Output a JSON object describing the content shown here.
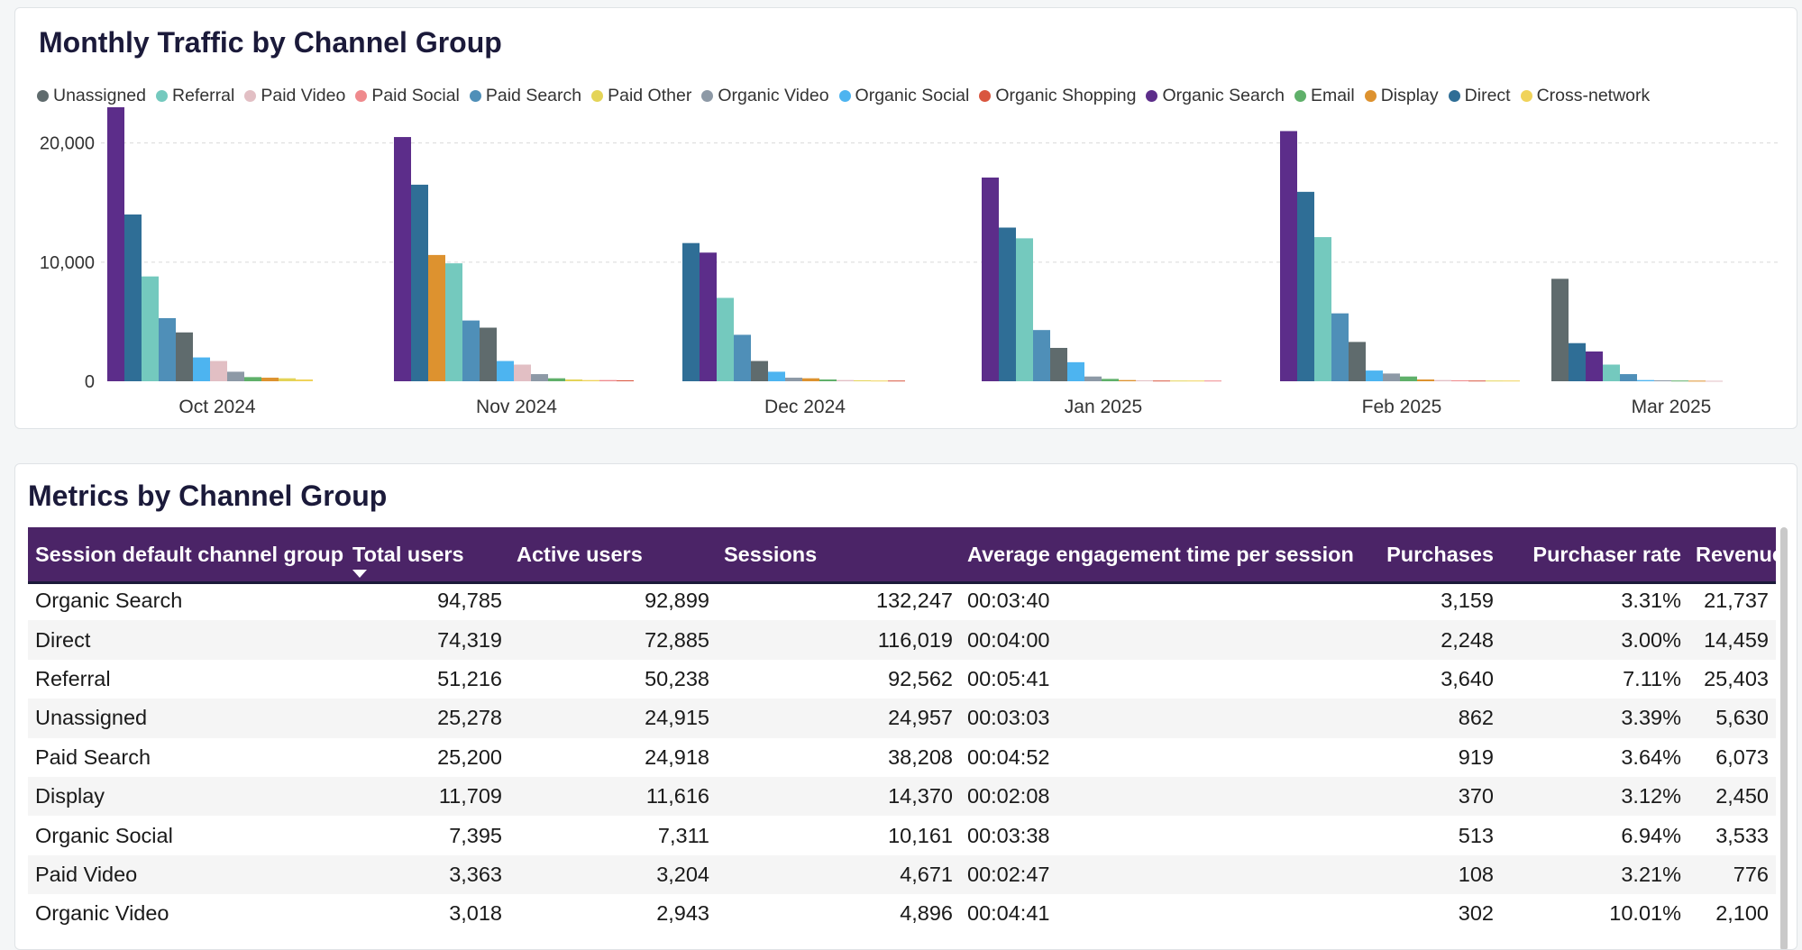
{
  "chart": {
    "title": "Monthly Traffic by Channel Group",
    "legend": [
      {
        "name": "Unassigned",
        "color": "#5f6b6d"
      },
      {
        "name": "Referral",
        "color": "#74c9be"
      },
      {
        "name": "Paid Video",
        "color": "#e2bfc4"
      },
      {
        "name": "Paid Social",
        "color": "#ef8a8d"
      },
      {
        "name": "Paid Search",
        "color": "#4f8fb8"
      },
      {
        "name": "Paid Other",
        "color": "#e4d458"
      },
      {
        "name": "Organic Video",
        "color": "#8d99a6"
      },
      {
        "name": "Organic Social",
        "color": "#4db4f0"
      },
      {
        "name": "Organic Shopping",
        "color": "#d9563f"
      },
      {
        "name": "Organic Search",
        "color": "#5c2d8a"
      },
      {
        "name": "Email",
        "color": "#5fb06a"
      },
      {
        "name": "Display",
        "color": "#dd922f"
      },
      {
        "name": "Direct",
        "color": "#2f6e96"
      },
      {
        "name": "Cross-network",
        "color": "#f0d35a"
      }
    ]
  },
  "chart_data": {
    "type": "bar",
    "title": "Monthly Traffic by Channel Group",
    "xlabel": "",
    "ylabel": "",
    "ylim": [
      0,
      23000
    ],
    "yticks": [
      0,
      10000,
      20000
    ],
    "ytick_labels": [
      "0",
      "10,000",
      "20,000"
    ],
    "grid": true,
    "categories": [
      "Oct 2024",
      "Nov 2024",
      "Dec 2024",
      "Jan 2025",
      "Feb 2025",
      "Mar 2025"
    ],
    "months": [
      {
        "label": "Oct 2024",
        "bars": [
          {
            "series": "Organic Search",
            "value": 23000
          },
          {
            "series": "Direct",
            "value": 14000
          },
          {
            "series": "Referral",
            "value": 8800
          },
          {
            "series": "Paid Search",
            "value": 5300
          },
          {
            "series": "Unassigned",
            "value": 4100
          },
          {
            "series": "Organic Social",
            "value": 2000
          },
          {
            "series": "Paid Video",
            "value": 1700
          },
          {
            "series": "Organic Video",
            "value": 800
          },
          {
            "series": "Email",
            "value": 350
          },
          {
            "series": "Display",
            "value": 300
          },
          {
            "series": "Paid Other",
            "value": 250
          },
          {
            "series": "Cross-network",
            "value": 150
          }
        ]
      },
      {
        "label": "Nov 2024",
        "bars": [
          {
            "series": "Organic Search",
            "value": 20500
          },
          {
            "series": "Direct",
            "value": 16500
          },
          {
            "series": "Display",
            "value": 10600
          },
          {
            "series": "Referral",
            "value": 9900
          },
          {
            "series": "Paid Search",
            "value": 5100
          },
          {
            "series": "Unassigned",
            "value": 4500
          },
          {
            "series": "Organic Social",
            "value": 1700
          },
          {
            "series": "Paid Video",
            "value": 1400
          },
          {
            "series": "Organic Video",
            "value": 600
          },
          {
            "series": "Email",
            "value": 250
          },
          {
            "series": "Paid Other",
            "value": 150
          },
          {
            "series": "Cross-network",
            "value": 100
          },
          {
            "series": "Paid Social",
            "value": 100
          },
          {
            "series": "Organic Shopping",
            "value": 80
          }
        ]
      },
      {
        "label": "Dec 2024",
        "bars": [
          {
            "series": "Direct",
            "value": 11600
          },
          {
            "series": "Organic Search",
            "value": 10800
          },
          {
            "series": "Referral",
            "value": 7000
          },
          {
            "series": "Paid Search",
            "value": 3900
          },
          {
            "series": "Unassigned",
            "value": 1700
          },
          {
            "series": "Organic Social",
            "value": 800
          },
          {
            "series": "Organic Video",
            "value": 300
          },
          {
            "series": "Display",
            "value": 250
          },
          {
            "series": "Email",
            "value": 150
          },
          {
            "series": "Paid Video",
            "value": 100
          },
          {
            "series": "Paid Other",
            "value": 80
          },
          {
            "series": "Cross-network",
            "value": 60
          },
          {
            "series": "Organic Shopping",
            "value": 60
          }
        ]
      },
      {
        "label": "Jan 2025",
        "bars": [
          {
            "series": "Organic Search",
            "value": 17100
          },
          {
            "series": "Direct",
            "value": 12900
          },
          {
            "series": "Referral",
            "value": 12000
          },
          {
            "series": "Paid Search",
            "value": 4300
          },
          {
            "series": "Unassigned",
            "value": 2800
          },
          {
            "series": "Organic Social",
            "value": 1600
          },
          {
            "series": "Organic Video",
            "value": 400
          },
          {
            "series": "Email",
            "value": 200
          },
          {
            "series": "Display",
            "value": 100
          },
          {
            "series": "Paid Video",
            "value": 80
          },
          {
            "series": "Organic Shopping",
            "value": 60
          },
          {
            "series": "Paid Other",
            "value": 60
          },
          {
            "series": "Cross-network",
            "value": 60
          },
          {
            "series": "Paid Social",
            "value": 60
          }
        ]
      },
      {
        "label": "Feb 2025",
        "bars": [
          {
            "series": "Organic Search",
            "value": 21000
          },
          {
            "series": "Direct",
            "value": 15900
          },
          {
            "series": "Referral",
            "value": 12100
          },
          {
            "series": "Paid Search",
            "value": 5700
          },
          {
            "series": "Unassigned",
            "value": 3300
          },
          {
            "series": "Organic Social",
            "value": 900
          },
          {
            "series": "Organic Video",
            "value": 650
          },
          {
            "series": "Email",
            "value": 400
          },
          {
            "series": "Display",
            "value": 150
          },
          {
            "series": "Paid Video",
            "value": 100
          },
          {
            "series": "Paid Social",
            "value": 80
          },
          {
            "series": "Organic Shopping",
            "value": 60
          },
          {
            "series": "Paid Other",
            "value": 60
          },
          {
            "series": "Cross-network",
            "value": 60
          }
        ]
      },
      {
        "label": "Mar 2025",
        "bars": [
          {
            "series": "Unassigned",
            "value": 8600
          },
          {
            "series": "Direct",
            "value": 3200
          },
          {
            "series": "Organic Search",
            "value": 2500
          },
          {
            "series": "Referral",
            "value": 1400
          },
          {
            "series": "Paid Search",
            "value": 600
          },
          {
            "series": "Organic Social",
            "value": 100
          },
          {
            "series": "Organic Video",
            "value": 80
          },
          {
            "series": "Email",
            "value": 60
          },
          {
            "series": "Display",
            "value": 50
          },
          {
            "series": "Paid Video",
            "value": 40
          }
        ]
      }
    ]
  },
  "table": {
    "title": "Metrics by Channel Group",
    "columns": [
      "Session default channel group",
      "Total users",
      "Active users",
      "Sessions",
      "Average engagement time per session",
      "Purchases",
      "Purchaser rate",
      "Revenue"
    ],
    "rows": [
      [
        "Organic Search",
        "94,785",
        "92,899",
        "132,247",
        "00:03:40",
        "3,159",
        "3.31%",
        "21,737"
      ],
      [
        "Direct",
        "74,319",
        "72,885",
        "116,019",
        "00:04:00",
        "2,248",
        "3.00%",
        "14,459"
      ],
      [
        "Referral",
        "51,216",
        "50,238",
        "92,562",
        "00:05:41",
        "3,640",
        "7.11%",
        "25,403"
      ],
      [
        "Unassigned",
        "25,278",
        "24,915",
        "24,957",
        "00:03:03",
        "862",
        "3.39%",
        "5,630"
      ],
      [
        "Paid Search",
        "25,200",
        "24,918",
        "38,208",
        "00:04:52",
        "919",
        "3.64%",
        "6,073"
      ],
      [
        "Display",
        "11,709",
        "11,616",
        "14,370",
        "00:02:08",
        "370",
        "3.12%",
        "2,450"
      ],
      [
        "Organic Social",
        "7,395",
        "7,311",
        "10,161",
        "00:03:38",
        "513",
        "6.94%",
        "3,533"
      ],
      [
        "Paid Video",
        "3,363",
        "3,204",
        "4,671",
        "00:02:47",
        "108",
        "3.21%",
        "776"
      ],
      [
        "Organic Video",
        "3,018",
        "2,943",
        "4,896",
        "00:04:41",
        "302",
        "10.01%",
        "2,100"
      ]
    ]
  },
  "colors": {
    "header_bg": "#4b2467",
    "title": "#1b1a3a"
  }
}
